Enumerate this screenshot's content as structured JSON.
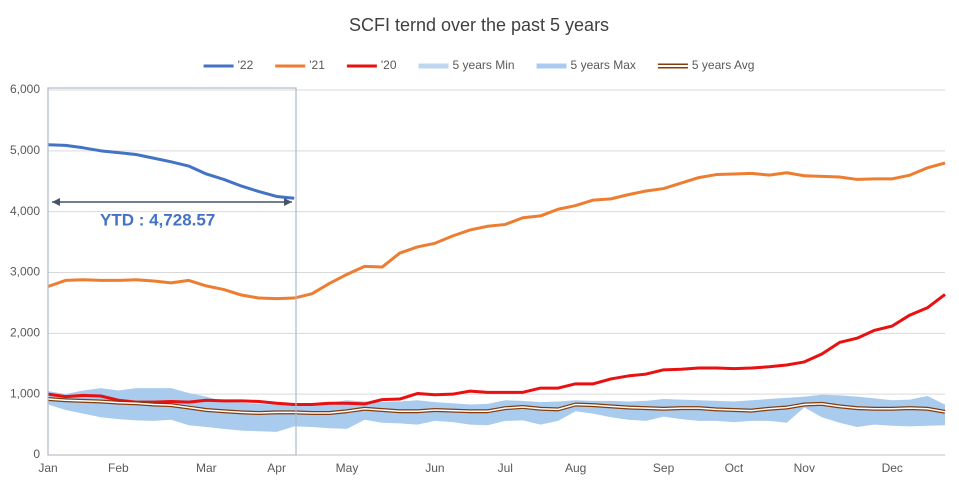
{
  "chart_data": {
    "type": "line",
    "title": "SCFI ternd over the past 5 years",
    "annotation": "YTD : 4,728.57",
    "categories": [
      "Jan",
      null,
      null,
      null,
      "Feb",
      null,
      null,
      null,
      null,
      "Mar",
      null,
      null,
      null,
      "Apr",
      null,
      null,
      null,
      "May",
      null,
      null,
      null,
      null,
      "Jun",
      null,
      null,
      null,
      "Jul",
      null,
      null,
      null,
      "Aug",
      null,
      null,
      null,
      null,
      "Sep",
      null,
      null,
      null,
      "Oct",
      null,
      null,
      null,
      "Nov",
      null,
      null,
      null,
      null,
      "Dec",
      null,
      null,
      null
    ],
    "ylim": [
      0,
      6000
    ],
    "yticks": [
      0,
      {
        "value": 1000,
        "label": "1,000"
      },
      {
        "value": 2000,
        "label": "2,000"
      },
      {
        "value": 3000,
        "label": "3,000"
      },
      {
        "value": 4000,
        "label": "4,000"
      },
      {
        "value": 5000,
        "label": "5,000"
      },
      {
        "value": 6000,
        "label": "6,000"
      }
    ],
    "legend": "top",
    "series": [
      {
        "name": "'22",
        "color": "#4472c4",
        "style": "line",
        "values": [
          5100,
          5090,
          5050,
          5000,
          4970,
          4940,
          4880,
          4820,
          4750,
          4620,
          4530,
          4420,
          4330,
          4250,
          4220,
          null,
          null,
          null,
          null,
          null,
          null,
          null,
          null,
          null,
          null,
          null,
          null,
          null,
          null,
          null,
          null,
          null,
          null,
          null,
          null,
          null,
          null,
          null,
          null,
          null,
          null,
          null,
          null,
          null,
          null,
          null,
          null,
          null,
          null,
          null,
          null,
          null
        ]
      },
      {
        "name": "'21",
        "color": "#ed7d31",
        "style": "line",
        "values": [
          2770,
          2870,
          2880,
          2870,
          2870,
          2880,
          2860,
          2830,
          2870,
          2780,
          2720,
          2630,
          2580,
          2570,
          2580,
          2650,
          2820,
          2970,
          3100,
          3090,
          3320,
          3420,
          3480,
          3600,
          3700,
          3760,
          3790,
          3900,
          3930,
          4040,
          4100,
          4190,
          4210,
          4280,
          4340,
          4380,
          4470,
          4560,
          4610,
          4620,
          4630,
          4600,
          4640,
          4590,
          4580,
          4570,
          4530,
          4540,
          4540,
          4600,
          4720,
          4800
        ]
      },
      {
        "name": "'20",
        "color": "#e81010",
        "style": "line",
        "values": [
          1000,
          960,
          980,
          970,
          900,
          870,
          870,
          880,
          870,
          900,
          890,
          890,
          880,
          850,
          830,
          830,
          850,
          850,
          840,
          910,
          920,
          1010,
          990,
          1000,
          1050,
          1030,
          1030,
          1030,
          1100,
          1100,
          1170,
          1170,
          1250,
          1300,
          1330,
          1400,
          1410,
          1430,
          1430,
          1420,
          1430,
          1450,
          1480,
          1530,
          1660,
          1850,
          1920,
          2050,
          2120,
          2300,
          2420,
          2640
        ]
      },
      {
        "name": "5 years Min",
        "color": "#bdd7ee",
        "style": "band-lower",
        "values": [
          830,
          740,
          680,
          620,
          590,
          570,
          560,
          580,
          490,
          460,
          430,
          400,
          390,
          380,
          470,
          460,
          440,
          430,
          580,
          530,
          520,
          500,
          560,
          540,
          500,
          490,
          560,
          570,
          500,
          560,
          720,
          680,
          620,
          580,
          560,
          630,
          590,
          560,
          560,
          540,
          560,
          560,
          530,
          780,
          620,
          530,
          460,
          500,
          480,
          470,
          480,
          490
        ]
      },
      {
        "name": "5 years Max",
        "color": "#a9cbee",
        "style": "band-upper",
        "values": [
          1050,
          1000,
          1060,
          1100,
          1060,
          1100,
          1100,
          1100,
          1020,
          960,
          880,
          860,
          840,
          830,
          820,
          830,
          860,
          900,
          880,
          870,
          880,
          900,
          870,
          850,
          830,
          840,
          900,
          890,
          870,
          880,
          900,
          890,
          890,
          880,
          890,
          920,
          910,
          900,
          890,
          880,
          900,
          920,
          940,
          960,
          990,
          980,
          960,
          930,
          900,
          910,
          970,
          830
        ]
      },
      {
        "name": "5 years Avg",
        "color": "#843c0c",
        "style": "double-line",
        "values": [
          920,
          900,
          890,
          880,
          860,
          850,
          830,
          820,
          780,
          740,
          720,
          700,
          690,
          700,
          700,
          690,
          690,
          720,
          760,
          740,
          720,
          720,
          740,
          730,
          720,
          720,
          770,
          790,
          760,
          750,
          830,
          820,
          800,
          780,
          770,
          760,
          770,
          770,
          750,
          740,
          730,
          760,
          780,
          830,
          840,
          800,
          770,
          760,
          760,
          770,
          760,
          710
        ]
      }
    ]
  }
}
